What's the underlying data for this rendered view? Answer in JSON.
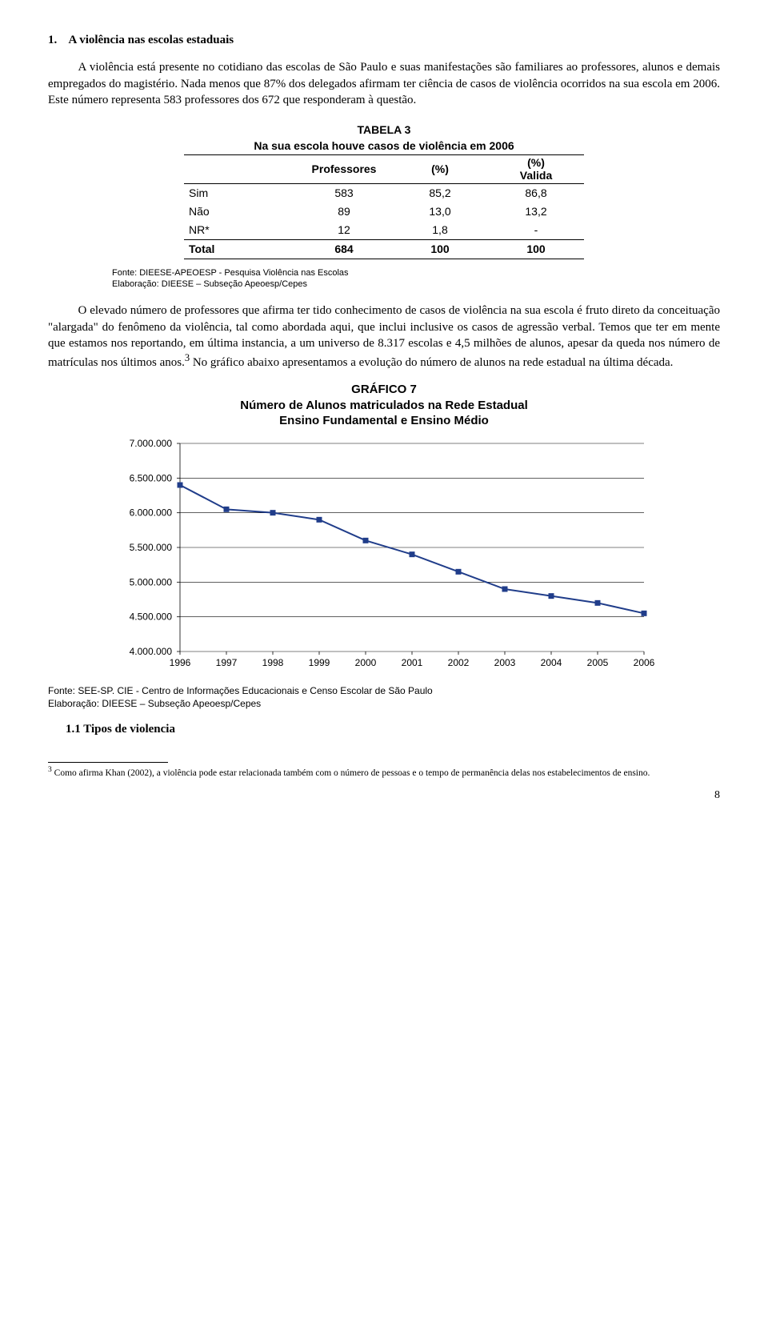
{
  "section": {
    "number": "1.",
    "title": "A violência nas escolas estaduais"
  },
  "para1": "A violência está presente no cotidiano das escolas de São Paulo e suas manifestações são familiares ao professores, alunos e demais empregados do magistério. Nada menos que 87% dos delegados afirmam ter ciência de casos de violência ocorridos na sua escola em 2006. Este número representa 583 professores dos 672 que responderam à questão.",
  "table3": {
    "label": "TABELA 3",
    "title": "Na sua escola houve casos de violência em 2006",
    "columns": [
      "",
      "Professores",
      "(%)",
      "(%) Valida"
    ],
    "rows": [
      [
        "Sim",
        "583",
        "85,2",
        "86,8"
      ],
      [
        "Não",
        "89",
        "13,0",
        "13,2"
      ],
      [
        "NR*",
        "12",
        "1,8",
        "-"
      ]
    ],
    "total": [
      "Total",
      "684",
      "100",
      "100"
    ],
    "source1": "Fonte: DIEESE-APEOESP  - Pesquisa Violência nas Escolas",
    "source2": "Elaboração: DIEESE – Subseção Apeoesp/Cepes"
  },
  "para2a": "O elevado número de professores que afirma ter tido conhecimento de casos de violência na sua escola é fruto direto da conceituação \"alargada\" do fenômeno da violência, tal como abordada aqui, que inclui inclusive os casos de agressão verbal. Temos que ter em mente que estamos nos reportando, em última instancia, a um universo de 8.317 escolas e 4,5 milhões de alunos, apesar da queda nos número de matrículas nos últimos anos.",
  "para2b": " No gráfico abaixo apresentamos a evolução do número de alunos na rede estadual na última década.",
  "sup3": "3",
  "chart7": {
    "label": "GRÁFICO 7",
    "title1": "Número de Alunos matriculados na Rede Estadual",
    "title2": "Ensino Fundamental e Ensino Médio",
    "type": "line",
    "x_labels": [
      "1996",
      "1997",
      "1998",
      "1999",
      "2000",
      "2001",
      "2002",
      "2003",
      "2004",
      "2005",
      "2006"
    ],
    "y_ticks": [
      "4.000.000",
      "4.500.000",
      "5.000.000",
      "5.500.000",
      "6.000.000",
      "6.500.000",
      "7.000.000"
    ],
    "y_min": 4000000,
    "y_max": 7000000,
    "values": [
      6400000,
      6050000,
      6000000,
      5900000,
      5600000,
      5400000,
      5150000,
      4900000,
      4800000,
      4700000,
      4550000
    ],
    "line_color": "#203d8a",
    "marker_fill": "#203d8a",
    "marker_size": 6,
    "line_width": 2,
    "grid_color": "#000000",
    "background": "#ffffff",
    "tick_fontsize": 12,
    "source1": "Fonte: SEE-SP. CIE - Centro de Informações Educacionais e Censo Escolar de São Paulo",
    "source2": "Elaboração: DIEESE – Subseção Apeoesp/Cepes"
  },
  "subheading": "1.1 Tipos de violencia",
  "footnote": {
    "num": "3",
    "text": " Como afirma Khan (2002), a violência pode estar relacionada também com o número de pessoas e o tempo de permanência delas nos estabelecimentos de ensino."
  },
  "page": "8"
}
